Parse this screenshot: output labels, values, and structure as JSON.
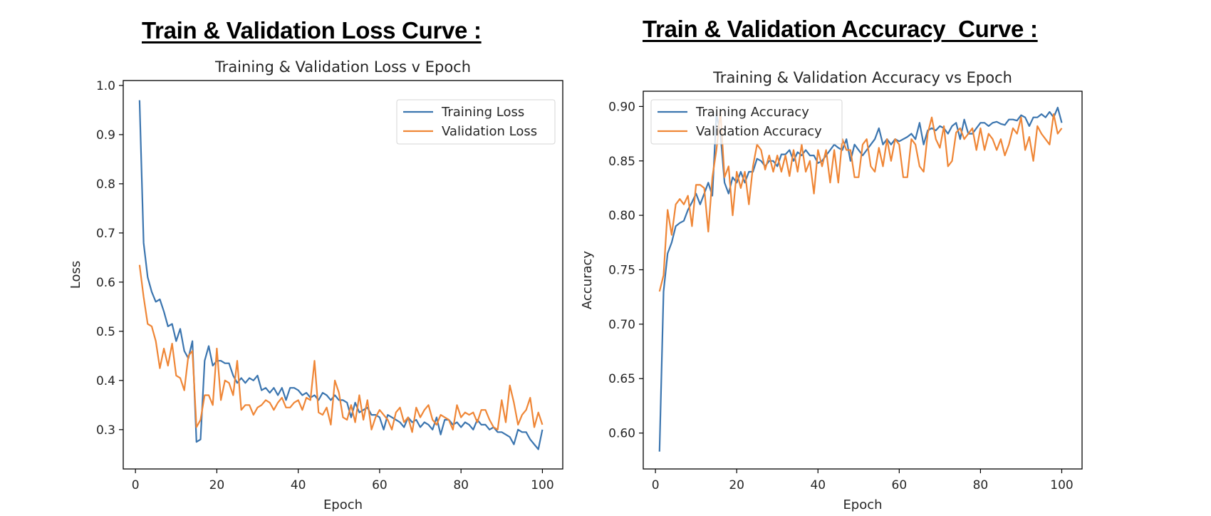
{
  "headings": {
    "loss": "Train & Validation Loss Curve :",
    "accuracy": "Train & Validation Accuracy  Curve :"
  },
  "colors": {
    "training": "#3b75af",
    "validation": "#ef8636"
  },
  "chart_data": [
    {
      "type": "line",
      "title": "Training & Validation Loss v Epoch",
      "xlabel": "Epoch",
      "ylabel": "Loss",
      "xlim": [
        -3,
        105
      ],
      "ylim": [
        0.22,
        1.01
      ],
      "xticks": [
        0,
        20,
        40,
        60,
        80,
        100
      ],
      "yticks": [
        0.3,
        0.4,
        0.5,
        0.6,
        0.7,
        0.8,
        0.9,
        1.0
      ],
      "ytick_labels": [
        "0.3",
        "0.4",
        "0.5",
        "0.6",
        "0.7",
        "0.8",
        "0.9",
        "1.0"
      ],
      "grid": false,
      "legend": "top-right",
      "x": [
        1,
        2,
        3,
        4,
        5,
        6,
        7,
        8,
        9,
        10,
        11,
        12,
        13,
        14,
        15,
        16,
        17,
        18,
        19,
        20,
        21,
        22,
        23,
        24,
        25,
        26,
        27,
        28,
        29,
        30,
        31,
        32,
        33,
        34,
        35,
        36,
        37,
        38,
        39,
        40,
        41,
        42,
        43,
        44,
        45,
        46,
        47,
        48,
        49,
        50,
        51,
        52,
        53,
        54,
        55,
        56,
        57,
        58,
        59,
        60,
        61,
        62,
        63,
        64,
        65,
        66,
        67,
        68,
        69,
        70,
        71,
        72,
        73,
        74,
        75,
        76,
        77,
        78,
        79,
        80,
        81,
        82,
        83,
        84,
        85,
        86,
        87,
        88,
        89,
        90,
        91,
        92,
        93,
        94,
        95,
        96,
        97,
        98,
        99,
        100
      ],
      "series": [
        {
          "name": "Training Loss",
          "values": [
            0.97,
            0.68,
            0.61,
            0.58,
            0.56,
            0.565,
            0.54,
            0.51,
            0.515,
            0.48,
            0.505,
            0.46,
            0.445,
            0.48,
            0.275,
            0.28,
            0.44,
            0.47,
            0.43,
            0.44,
            0.44,
            0.435,
            0.435,
            0.41,
            0.395,
            0.405,
            0.395,
            0.405,
            0.4,
            0.41,
            0.38,
            0.385,
            0.375,
            0.385,
            0.37,
            0.385,
            0.36,
            0.385,
            0.385,
            0.38,
            0.37,
            0.375,
            0.365,
            0.37,
            0.36,
            0.375,
            0.37,
            0.36,
            0.37,
            0.36,
            0.36,
            0.355,
            0.325,
            0.355,
            0.335,
            0.34,
            0.345,
            0.33,
            0.33,
            0.325,
            0.3,
            0.33,
            0.325,
            0.32,
            0.315,
            0.305,
            0.325,
            0.315,
            0.32,
            0.305,
            0.315,
            0.31,
            0.3,
            0.325,
            0.29,
            0.32,
            0.32,
            0.31,
            0.315,
            0.305,
            0.315,
            0.31,
            0.3,
            0.32,
            0.31,
            0.31,
            0.3,
            0.305,
            0.295,
            0.295,
            0.29,
            0.285,
            0.27,
            0.3,
            0.295,
            0.295,
            0.28,
            0.27,
            0.26,
            0.3
          ]
        },
        {
          "name": "Validation Loss",
          "values": [
            0.635,
            0.57,
            0.515,
            0.51,
            0.48,
            0.425,
            0.465,
            0.43,
            0.475,
            0.41,
            0.405,
            0.38,
            0.45,
            0.46,
            0.305,
            0.32,
            0.37,
            0.37,
            0.35,
            0.465,
            0.36,
            0.4,
            0.395,
            0.37,
            0.44,
            0.34,
            0.35,
            0.35,
            0.33,
            0.345,
            0.35,
            0.36,
            0.355,
            0.34,
            0.355,
            0.365,
            0.345,
            0.345,
            0.355,
            0.36,
            0.34,
            0.365,
            0.36,
            0.44,
            0.335,
            0.33,
            0.345,
            0.31,
            0.4,
            0.375,
            0.325,
            0.32,
            0.35,
            0.315,
            0.37,
            0.32,
            0.36,
            0.3,
            0.325,
            0.34,
            0.33,
            0.32,
            0.3,
            0.335,
            0.345,
            0.315,
            0.325,
            0.295,
            0.345,
            0.325,
            0.34,
            0.35,
            0.32,
            0.31,
            0.33,
            0.325,
            0.32,
            0.3,
            0.35,
            0.325,
            0.335,
            0.33,
            0.335,
            0.315,
            0.34,
            0.34,
            0.32,
            0.305,
            0.3,
            0.36,
            0.315,
            0.39,
            0.355,
            0.31,
            0.33,
            0.34,
            0.365,
            0.305,
            0.335,
            0.31
          ]
        }
      ]
    },
    {
      "type": "line",
      "title": "Training & Validation Accuracy vs Epoch",
      "xlabel": "Epoch",
      "ylabel": "Accuracy",
      "xlim": [
        -3,
        105
      ],
      "ylim": [
        0.567,
        0.914
      ],
      "xticks": [
        0,
        20,
        40,
        60,
        80,
        100
      ],
      "yticks": [
        0.6,
        0.65,
        0.7,
        0.75,
        0.8,
        0.85,
        0.9
      ],
      "ytick_labels": [
        "0.60",
        "0.65",
        "0.70",
        "0.75",
        "0.80",
        "0.85",
        "0.90"
      ],
      "grid": false,
      "legend": "top-left",
      "x": [
        1,
        2,
        3,
        4,
        5,
        6,
        7,
        8,
        9,
        10,
        11,
        12,
        13,
        14,
        15,
        16,
        17,
        18,
        19,
        20,
        21,
        22,
        23,
        24,
        25,
        26,
        27,
        28,
        29,
        30,
        31,
        32,
        33,
        34,
        35,
        36,
        37,
        38,
        39,
        40,
        41,
        42,
        43,
        44,
        45,
        46,
        47,
        48,
        49,
        50,
        51,
        52,
        53,
        54,
        55,
        56,
        57,
        58,
        59,
        60,
        61,
        62,
        63,
        64,
        65,
        66,
        67,
        68,
        69,
        70,
        71,
        72,
        73,
        74,
        75,
        76,
        77,
        78,
        79,
        80,
        81,
        82,
        83,
        84,
        85,
        86,
        87,
        88,
        89,
        90,
        91,
        92,
        93,
        94,
        95,
        96,
        97,
        98,
        99,
        100
      ],
      "series": [
        {
          "name": "Training Accuracy",
          "values": [
            0.583,
            0.73,
            0.765,
            0.775,
            0.79,
            0.793,
            0.795,
            0.805,
            0.812,
            0.82,
            0.81,
            0.82,
            0.83,
            0.818,
            0.893,
            0.875,
            0.83,
            0.82,
            0.835,
            0.83,
            0.84,
            0.83,
            0.84,
            0.84,
            0.852,
            0.85,
            0.845,
            0.85,
            0.85,
            0.845,
            0.856,
            0.856,
            0.86,
            0.85,
            0.858,
            0.855,
            0.86,
            0.855,
            0.855,
            0.848,
            0.85,
            0.855,
            0.86,
            0.865,
            0.862,
            0.86,
            0.87,
            0.85,
            0.865,
            0.86,
            0.855,
            0.86,
            0.865,
            0.87,
            0.88,
            0.865,
            0.87,
            0.865,
            0.87,
            0.868,
            0.87,
            0.872,
            0.875,
            0.87,
            0.885,
            0.865,
            0.878,
            0.88,
            0.878,
            0.882,
            0.88,
            0.875,
            0.882,
            0.885,
            0.87,
            0.888,
            0.875,
            0.875,
            0.88,
            0.885,
            0.885,
            0.882,
            0.885,
            0.886,
            0.884,
            0.883,
            0.888,
            0.888,
            0.887,
            0.892,
            0.89,
            0.882,
            0.89,
            0.89,
            0.893,
            0.89,
            0.895,
            0.89,
            0.899,
            0.885
          ]
        },
        {
          "name": "Validation Accuracy",
          "values": [
            0.73,
            0.745,
            0.805,
            0.782,
            0.81,
            0.815,
            0.81,
            0.818,
            0.79,
            0.828,
            0.828,
            0.825,
            0.785,
            0.835,
            0.86,
            0.895,
            0.835,
            0.845,
            0.8,
            0.84,
            0.825,
            0.84,
            0.81,
            0.845,
            0.865,
            0.86,
            0.842,
            0.855,
            0.84,
            0.855,
            0.84,
            0.855,
            0.836,
            0.86,
            0.84,
            0.865,
            0.84,
            0.85,
            0.82,
            0.86,
            0.845,
            0.86,
            0.83,
            0.86,
            0.83,
            0.87,
            0.86,
            0.86,
            0.835,
            0.835,
            0.865,
            0.87,
            0.845,
            0.84,
            0.862,
            0.845,
            0.87,
            0.85,
            0.87,
            0.865,
            0.835,
            0.835,
            0.87,
            0.865,
            0.845,
            0.84,
            0.875,
            0.89,
            0.87,
            0.862,
            0.882,
            0.845,
            0.85,
            0.876,
            0.88,
            0.87,
            0.875,
            0.88,
            0.86,
            0.88,
            0.86,
            0.875,
            0.87,
            0.86,
            0.87,
            0.855,
            0.865,
            0.88,
            0.875,
            0.89,
            0.86,
            0.872,
            0.85,
            0.882,
            0.875,
            0.87,
            0.865,
            0.893,
            0.875,
            0.88
          ]
        }
      ]
    }
  ]
}
